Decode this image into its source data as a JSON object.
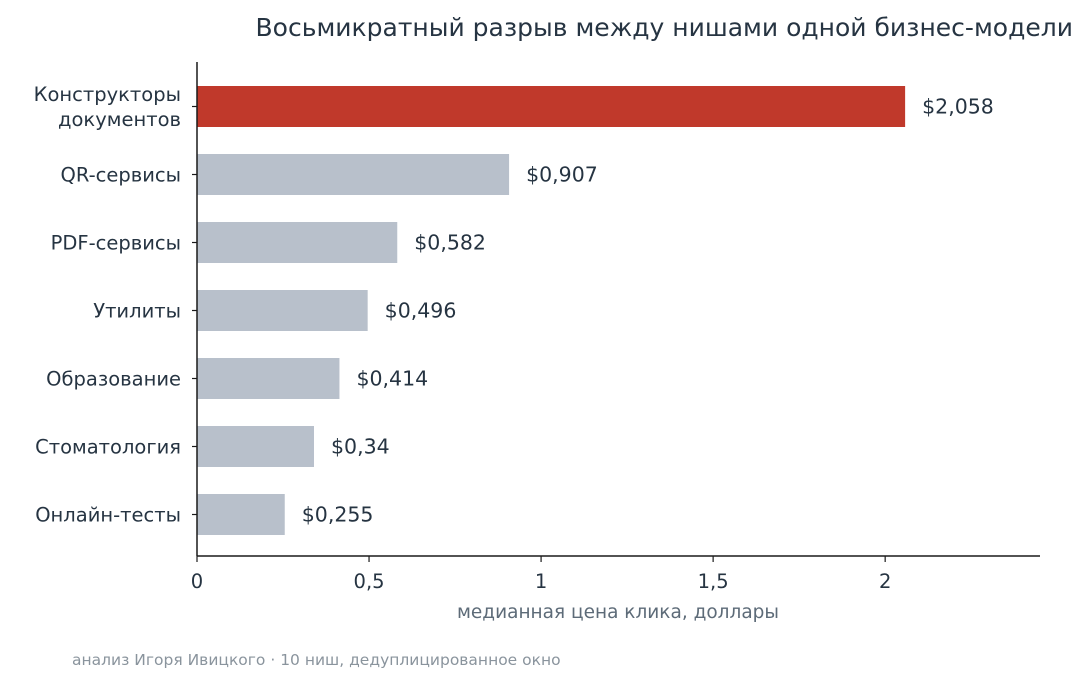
{
  "chart_data": {
    "type": "bar",
    "orientation": "horizontal",
    "title": "Восьмикратный разрыв между нишами одной бизнес-модели",
    "xlabel": "медианная цена клика, доллары",
    "ylabel": "",
    "footnote": "анализ Игоря Ивицкого · 10 ниш, дедуплицированное окно",
    "xlim": [
      0,
      2.45
    ],
    "xticks": [
      {
        "value": 0,
        "label": "0"
      },
      {
        "value": 0.5,
        "label": "0,5"
      },
      {
        "value": 1,
        "label": "1"
      },
      {
        "value": 1.5,
        "label": "1,5"
      },
      {
        "value": 2,
        "label": "2"
      }
    ],
    "grid": false,
    "legend": "none",
    "categories": [
      [
        "Конструкторы",
        "документов"
      ],
      [
        "QR-сервисы"
      ],
      [
        "PDF-сервисы"
      ],
      [
        "Утилиты"
      ],
      [
        "Образование"
      ],
      [
        "Стоматология"
      ],
      [
        "Онлайн-тесты"
      ]
    ],
    "values": [
      2.058,
      0.907,
      0.582,
      0.496,
      0.414,
      0.34,
      0.255
    ],
    "value_labels": [
      "$2,058",
      "$0,907",
      "$0,582",
      "$0,496",
      "$0,414",
      "$0,34",
      "$0,255"
    ],
    "highlight_index": 0,
    "colors": {
      "highlight": "#c0392b",
      "default": "#b8c0cb",
      "text": "#263442",
      "axis": "#1a1a1a"
    }
  }
}
